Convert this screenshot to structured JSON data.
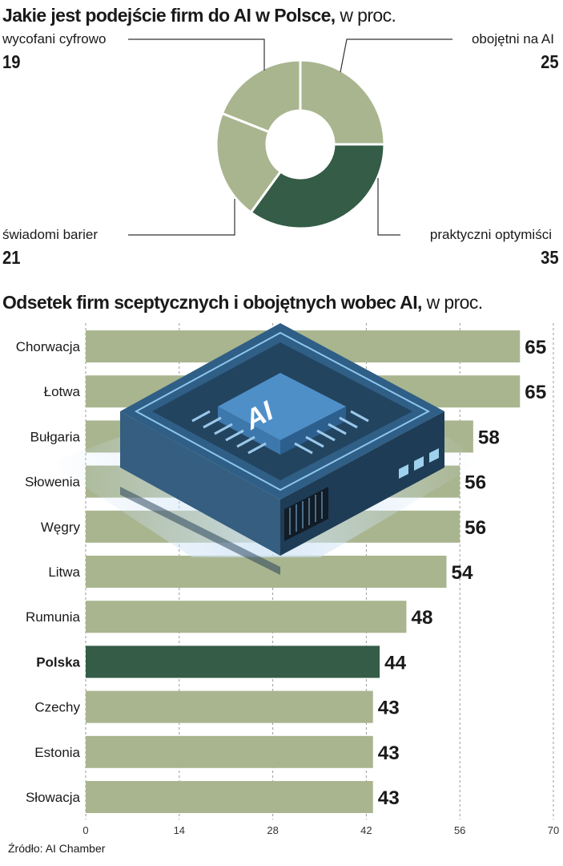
{
  "chart_data": [
    {
      "type": "pie",
      "title": "Jakie jest podejście firm do AI w Polsce,",
      "unit": "w proc.",
      "donut": true,
      "slices": [
        {
          "label": "obojętni na AI",
          "value": 25,
          "color": "#a9b58f"
        },
        {
          "label": "praktyczni optymiści",
          "value": 35,
          "color": "#345c47"
        },
        {
          "label": "świadomi barier",
          "value": 21,
          "color": "#a9b58f"
        },
        {
          "label": "wycofani cyfrowo",
          "value": 19,
          "color": "#a9b58f"
        }
      ]
    },
    {
      "type": "bar",
      "orientation": "horizontal",
      "title": "Odsetek firm sceptycznych i obojętnych wobec AI,",
      "unit": "w proc.",
      "categories": [
        "Chorwacja",
        "Łotwa",
        "Bułgaria",
        "Słowenia",
        "Węgry",
        "Litwa",
        "Rumunia",
        "Polska",
        "Czechy",
        "Estonia",
        "Słowacja"
      ],
      "values": [
        65,
        65,
        58,
        56,
        56,
        54,
        48,
        44,
        43,
        43,
        43
      ],
      "highlight": "Polska",
      "bar_color": "#a9b58f",
      "highlight_color": "#345c47",
      "xlim": [
        0,
        70
      ],
      "xticks": [
        0,
        14,
        28,
        42,
        56,
        70
      ],
      "grid": "dashed vertical",
      "decoration": "AI chip illustration",
      "chip_label": "AI"
    }
  ],
  "source": "Źródło: AI Chamber"
}
